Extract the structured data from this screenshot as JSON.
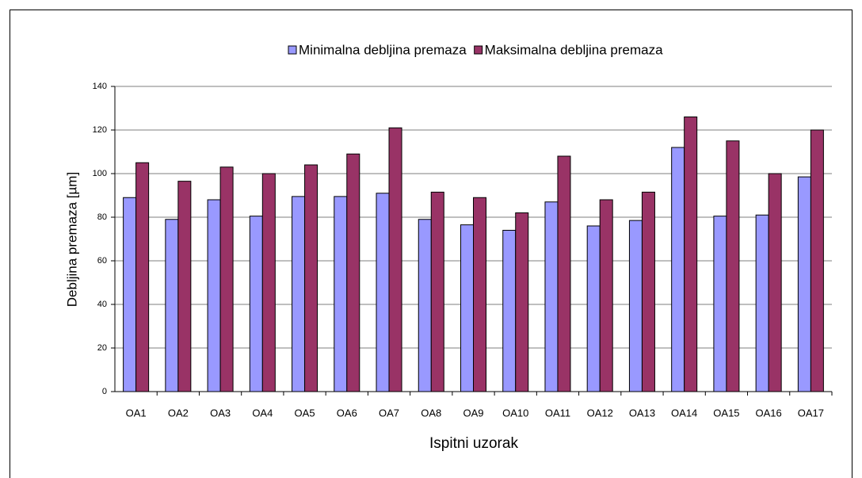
{
  "chart_data": {
    "type": "bar",
    "x_label": "Ispitni uzorak",
    "y_label": "Debljina premaza [µm]",
    "categories": [
      "OA1",
      "OA2",
      "OA3",
      "OA4",
      "OA5",
      "OA6",
      "OA7",
      "OA8",
      "OA9",
      "OA10",
      "OA11",
      "OA12",
      "OA13",
      "OA14",
      "OA15",
      "OA16",
      "OA17"
    ],
    "series": [
      {
        "name": "Minimalna debljina premaza",
        "color": "#9999ff",
        "values": [
          89,
          79,
          88,
          80.5,
          89.5,
          89.5,
          91,
          79,
          76.5,
          74,
          87,
          76,
          78.5,
          112,
          80.5,
          81,
          98.5
        ]
      },
      {
        "name": "Maksimalna debljina premaza",
        "color": "#993366",
        "values": [
          105,
          96.5,
          103,
          100,
          104,
          109,
          121,
          91.5,
          89,
          82,
          108,
          88,
          91.5,
          126,
          115,
          100,
          120
        ]
      }
    ],
    "ylim": [
      0,
      140
    ],
    "yticks": [
      0,
      20,
      40,
      60,
      80,
      100,
      120,
      140
    ],
    "grid": true,
    "legend": "top"
  }
}
